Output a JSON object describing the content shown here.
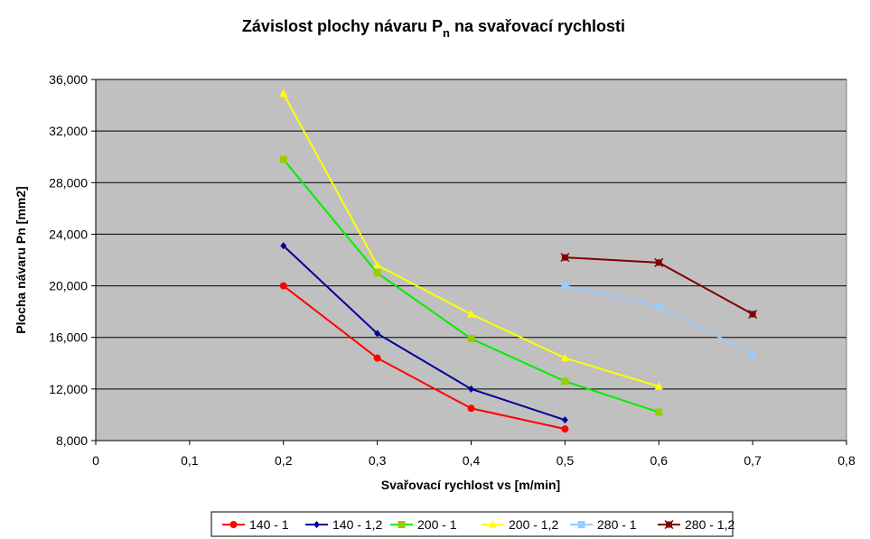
{
  "chart_data": {
    "type": "line",
    "title_main": "Závislost plochy návaru P",
    "title_sub": "n",
    "title_rest": " na svařovací rychlosti",
    "xlabel": "Svařovací rychlost vs [m/min]",
    "ylabel": "Plocha návaru  Pn  [mm2]",
    "xlim": [
      0,
      0.8
    ],
    "ylim": [
      8000,
      36000
    ],
    "x_ticks": [
      {
        "value": 0,
        "label": "0"
      },
      {
        "value": 0.1,
        "label": "0,1"
      },
      {
        "value": 0.2,
        "label": "0,2"
      },
      {
        "value": 0.3,
        "label": "0,3"
      },
      {
        "value": 0.4,
        "label": "0,4"
      },
      {
        "value": 0.5,
        "label": "0,5"
      },
      {
        "value": 0.6,
        "label": "0,6"
      },
      {
        "value": 0.7,
        "label": "0,7"
      },
      {
        "value": 0.8,
        "label": "0,8"
      }
    ],
    "y_ticks": [
      {
        "value": 8000,
        "label": "8,000"
      },
      {
        "value": 12000,
        "label": "12,000"
      },
      {
        "value": 16000,
        "label": "16,000"
      },
      {
        "value": 20000,
        "label": "20,000"
      },
      {
        "value": 24000,
        "label": "24,000"
      },
      {
        "value": 28000,
        "label": "28,000"
      },
      {
        "value": 32000,
        "label": "32,000"
      },
      {
        "value": 36000,
        "label": "36,000"
      }
    ],
    "grid": "horizontal",
    "plot_background": "#c0c0c0",
    "legend_position": "bottom",
    "series": [
      {
        "name": "140 - 1",
        "color": "#ff0000",
        "marker": "circle",
        "x": [
          0.2,
          0.3,
          0.4,
          0.5
        ],
        "y": [
          20000,
          14400,
          10500,
          8900
        ]
      },
      {
        "name": "140 - 1,2",
        "color": "#000099",
        "marker": "diamond",
        "x": [
          0.2,
          0.3,
          0.4,
          0.5
        ],
        "y": [
          23100,
          16300,
          12000,
          9600
        ]
      },
      {
        "name": "200 - 1",
        "color": "#00ee00",
        "marker": "square",
        "marker_color": "#99cc00",
        "x": [
          0.2,
          0.3,
          0.4,
          0.5,
          0.6
        ],
        "y": [
          29800,
          21000,
          15900,
          12600,
          10200
        ]
      },
      {
        "name": "200 - 1,2",
        "color": "#ffff00",
        "marker": "triangle",
        "x": [
          0.2,
          0.3,
          0.4,
          0.5,
          0.6
        ],
        "y": [
          34900,
          21600,
          17800,
          14400,
          12200
        ]
      },
      {
        "name": "280 - 1",
        "color": "#99ccff",
        "marker": "square",
        "x": [
          0.5,
          0.6,
          0.7
        ],
        "y": [
          20000,
          18400,
          14700
        ]
      },
      {
        "name": "280 - 1,2",
        "color": "#800000",
        "marker": "star",
        "x": [
          0.5,
          0.6,
          0.7
        ],
        "y": [
          22200,
          21800,
          17800
        ]
      }
    ]
  }
}
